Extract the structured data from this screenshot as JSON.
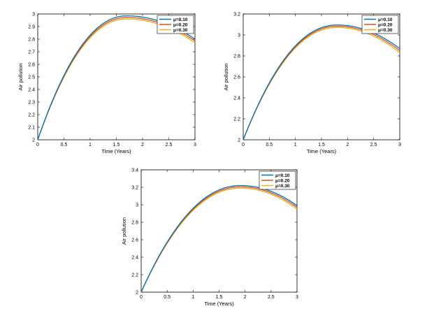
{
  "chart_data": [
    {
      "type": "line",
      "xlabel": "Time (Years)",
      "ylabel": "Air pollution",
      "xlim": [
        0,
        3
      ],
      "ylim": [
        2,
        3
      ],
      "xticks": [
        "0",
        "0.5",
        "1",
        "1.5",
        "2",
        "2.5",
        "3"
      ],
      "yticks": [
        "2",
        "2.1",
        "2.2",
        "2.3",
        "2.4",
        "2.5",
        "2.6",
        "2.7",
        "2.8",
        "2.9",
        "3"
      ],
      "legend_position": "top-right",
      "grid": false,
      "series": [
        {
          "name": "μ=0.10",
          "color": "#0072BD",
          "peak_x": 1.7,
          "peak_y": 2.985,
          "end_y": 2.8
        },
        {
          "name": "μ=0.20",
          "color": "#D95319",
          "peak_x": 1.7,
          "peak_y": 2.972,
          "end_y": 2.785
        },
        {
          "name": "μ=0.30",
          "color": "#EDB120",
          "peak_x": 1.7,
          "peak_y": 2.96,
          "end_y": 2.77
        }
      ]
    },
    {
      "type": "line",
      "xlabel": "Time (Years)",
      "ylabel": "Air pollution",
      "xlim": [
        0,
        3
      ],
      "ylim": [
        2,
        3.2
      ],
      "xticks": [
        "0",
        "0.5",
        "1",
        "1.5",
        "2",
        "2.5",
        "3"
      ],
      "yticks": [
        "2",
        "2.2",
        "2.4",
        "2.6",
        "2.8",
        "3",
        "3.2"
      ],
      "legend_position": "top-right",
      "grid": false,
      "series": [
        {
          "name": "μ=0.10",
          "color": "#0072BD",
          "peak_x": 1.8,
          "peak_y": 3.095,
          "end_y": 2.87
        },
        {
          "name": "μ=0.20",
          "color": "#D95319",
          "peak_x": 1.8,
          "peak_y": 3.083,
          "end_y": 2.85
        },
        {
          "name": "μ=0.30",
          "color": "#EDB120",
          "peak_x": 1.8,
          "peak_y": 3.071,
          "end_y": 2.83
        }
      ]
    },
    {
      "type": "line",
      "xlabel": "Time (Years)",
      "ylabel": "Air pollution",
      "xlim": [
        0,
        3
      ],
      "ylim": [
        2,
        3.4
      ],
      "xticks": [
        "0",
        "0.5",
        "1",
        "1.5",
        "2",
        "2.5",
        "3"
      ],
      "yticks": [
        "2",
        "2.2",
        "2.4",
        "2.6",
        "2.8",
        "3",
        "3.2",
        "3.4"
      ],
      "legend_position": "top-right",
      "grid": false,
      "series": [
        {
          "name": "μ=0.10",
          "color": "#0072BD",
          "peak_x": 1.92,
          "peak_y": 3.22,
          "end_y": 2.99
        },
        {
          "name": "μ=0.20",
          "color": "#D95319",
          "peak_x": 1.92,
          "peak_y": 3.205,
          "end_y": 2.97
        },
        {
          "name": "μ=0.30",
          "color": "#EDB120",
          "peak_x": 1.92,
          "peak_y": 3.19,
          "end_y": 2.95
        }
      ]
    }
  ]
}
